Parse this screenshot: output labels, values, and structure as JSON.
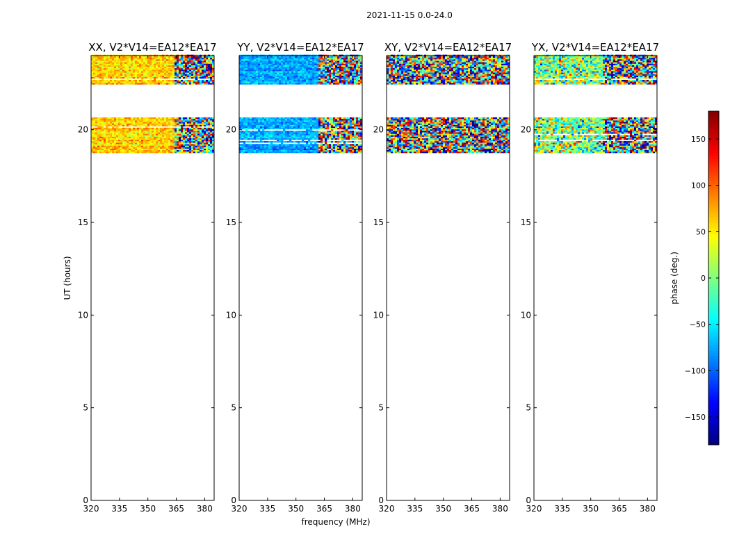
{
  "chart_data": {
    "type": "heatmap",
    "suptitle": "2021-11-15 0.0-24.0",
    "xlabel": "frequency (MHz)",
    "ylabel": "UT (hours)",
    "xlim": [
      320,
      385
    ],
    "ylim": [
      0,
      24
    ],
    "x_ticks": [
      "320",
      "335",
      "350",
      "365",
      "380"
    ],
    "y_ticks": [
      "0",
      "5",
      "10",
      "15",
      "20"
    ],
    "data_time_ranges_hours": [
      [
        18.75,
        20.65
      ],
      [
        22.45,
        24.0
      ]
    ],
    "panels": [
      {
        "title": "XX, V2*V14=EA12*EA17",
        "polarization": "XX",
        "mean_phase_deg": 60,
        "spread_deg": 25,
        "noisy_above_mhz": 363
      },
      {
        "title": "YY, V2*V14=EA12*EA17",
        "polarization": "YY",
        "mean_phase_deg": -75,
        "spread_deg": 20,
        "noisy_above_mhz": 361
      },
      {
        "title": "XY, V2*V14=EA12*EA17",
        "polarization": "XY",
        "mean_phase_deg": 0,
        "spread_deg": 180,
        "noisy_above_mhz": 320
      },
      {
        "title": "YX, V2*V14=EA12*EA17",
        "polarization": "YX",
        "mean_phase_deg": 5,
        "spread_deg": 70,
        "noisy_above_mhz": 356
      }
    ],
    "colorbar": {
      "label": "phase (deg.)",
      "colormap": "jet",
      "range": [
        -180,
        180
      ],
      "ticks": [
        "−150",
        "−100",
        "−50",
        "0",
        "50",
        "100",
        "150"
      ],
      "tick_values": [
        -150,
        -100,
        -50,
        0,
        50,
        100,
        150
      ]
    }
  }
}
